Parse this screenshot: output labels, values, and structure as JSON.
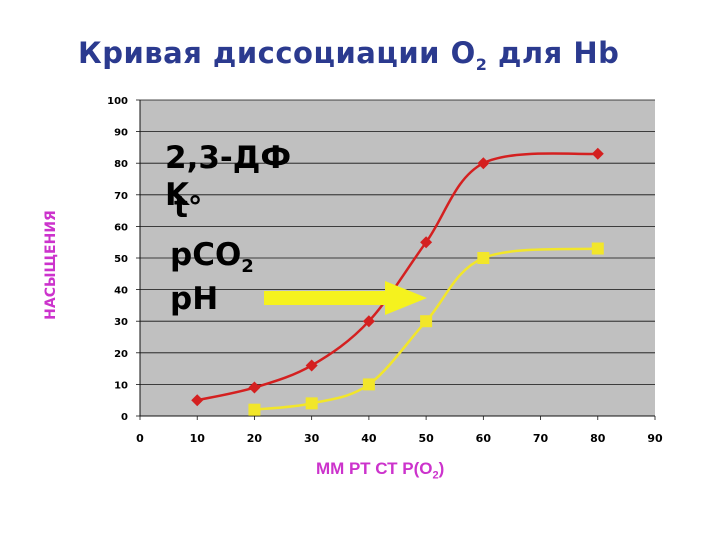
{
  "title": {
    "main": "Кривая диссоциации O",
    "sub": "2",
    "tail": " для Hb"
  },
  "factors": {
    "f1": "2,3-ДФ",
    "f2": "K",
    "f3": "t°",
    "f4_main": "pCO",
    "f4_sub": "2",
    "f5": "pH"
  },
  "colors": {
    "plot_bg": "#c0c0c0",
    "series_1": "#d42020",
    "series_2": "#f2e62a",
    "arrow": "#f5f21e",
    "title": "#2b3a8f",
    "axis_title": "#cc33cc"
  },
  "chart_data": {
    "type": "line",
    "xlabel_main": "ММ РТ СТ Р(O",
    "xlabel_sub": "2",
    "xlabel_tail": ")",
    "ylabel": "НАСЫЩЕНИЯ",
    "xlim": [
      0,
      90
    ],
    "ylim": [
      0,
      100
    ],
    "xticks": [
      "0",
      "10",
      "20",
      "30",
      "40",
      "50",
      "60",
      "70",
      "80",
      "90"
    ],
    "yticks": [
      "0",
      "10",
      "20",
      "30",
      "40",
      "50",
      "60",
      "70",
      "80",
      "90",
      "100"
    ],
    "grid": "horizontal",
    "series": [
      {
        "color": "#d42020",
        "marker": "diamond",
        "points": [
          [
            10,
            5
          ],
          [
            20,
            9
          ],
          [
            30,
            16
          ],
          [
            40,
            30
          ],
          [
            50,
            55
          ],
          [
            60,
            80
          ],
          [
            80,
            83
          ]
        ]
      },
      {
        "color": "#f2e62a",
        "marker": "square",
        "points": [
          [
            20,
            2
          ],
          [
            30,
            4
          ],
          [
            40,
            10
          ],
          [
            50,
            30
          ],
          [
            60,
            50
          ],
          [
            80,
            53
          ]
        ]
      }
    ]
  }
}
